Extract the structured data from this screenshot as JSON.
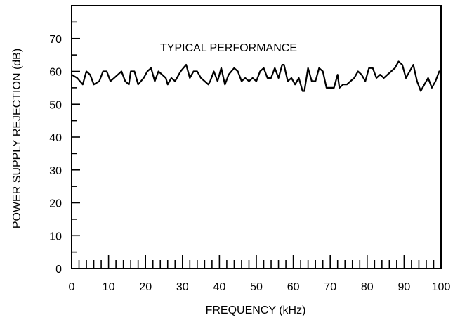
{
  "chart_data": {
    "type": "line",
    "title": "",
    "annotation": "TYPICAL PERFORMANCE",
    "xlabel": "FREQUENCY (kHz)",
    "ylabel": "POWER SUPPLY REJECTION (dB)",
    "xlim": [
      0,
      100
    ],
    "ylim": [
      0,
      80
    ],
    "x_ticks": [
      0,
      10,
      20,
      30,
      40,
      50,
      60,
      70,
      80,
      90,
      100
    ],
    "y_ticks": [
      0,
      10,
      20,
      30,
      40,
      50,
      60,
      70
    ],
    "x_minor_step": 2,
    "y_minor_step": 5,
    "grid": false,
    "series": [
      {
        "x": [
          0,
          1.5,
          3,
          4,
          5,
          6,
          7.5,
          8.5,
          9.5,
          10.5,
          11.5,
          12.5,
          13.5,
          14.5,
          15.5,
          16,
          17,
          18,
          19.5,
          20.5,
          21.5,
          22.5,
          23.5,
          24.5,
          25.5,
          26,
          27,
          28,
          29.5,
          31,
          32,
          33,
          34,
          35,
          36,
          37,
          37.5,
          38.5,
          39.5,
          40.5,
          41.5,
          42.5,
          44,
          45,
          46,
          47,
          48,
          49,
          50,
          51,
          52,
          53,
          54,
          55,
          56,
          57,
          57.5,
          58.5,
          59.5,
          60.5,
          61.5,
          62.5,
          63,
          64,
          65,
          66,
          67,
          68,
          69,
          70,
          71,
          72,
          72.5,
          73.5,
          74.5,
          75.5,
          76.5,
          77.5,
          78.5,
          79.5,
          80.5,
          81.5,
          82.5,
          83.5,
          84.5,
          85.5,
          86.5,
          87.5,
          88.5,
          89.5,
          90.5,
          91.5,
          92.5,
          93.5,
          94.5,
          95.5,
          96.5,
          97.5,
          98.5,
          99.5,
          100
        ],
        "y": [
          59,
          58,
          56,
          60,
          59,
          56,
          57,
          60,
          60,
          57,
          58,
          59,
          60,
          57,
          56,
          60,
          60,
          56,
          58,
          60,
          61,
          57,
          60,
          59,
          58,
          56,
          58,
          57,
          60,
          62,
          58,
          60,
          60,
          58,
          57,
          56,
          57,
          60,
          57,
          61,
          56,
          59,
          61,
          60,
          57,
          58,
          57,
          58,
          57,
          60,
          61,
          58,
          58,
          61,
          58,
          62,
          62,
          57,
          58,
          56,
          58,
          54,
          54,
          61,
          57,
          57,
          61,
          60,
          55,
          55,
          55,
          59,
          55,
          56,
          56,
          57,
          58,
          60,
          59,
          57,
          61,
          61,
          58,
          59,
          58,
          59,
          60,
          61,
          63,
          62,
          58,
          60,
          62,
          57,
          54,
          56,
          58,
          55,
          57,
          60,
          60
        ]
      }
    ]
  }
}
